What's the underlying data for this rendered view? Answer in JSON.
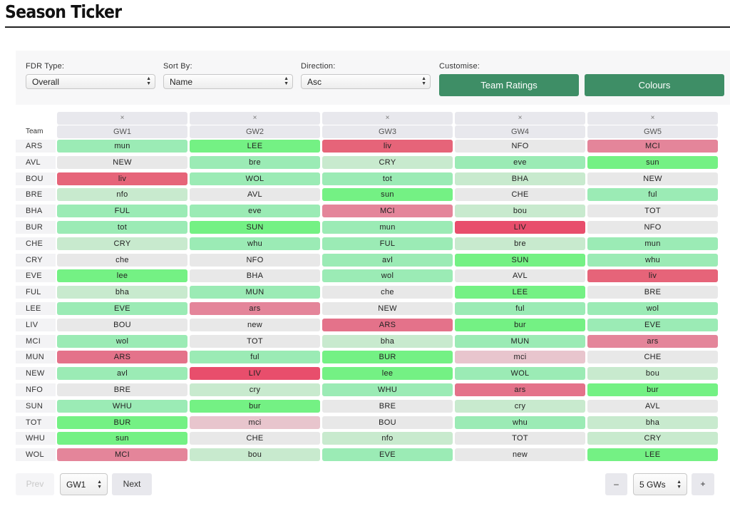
{
  "title": "Season Ticker",
  "controls": {
    "fdr_type": {
      "label": "FDR Type:",
      "value": "Overall"
    },
    "sort_by": {
      "label": "Sort By:",
      "value": "Name"
    },
    "direction": {
      "label": "Direction:",
      "value": "Asc"
    },
    "customise": {
      "label": "Customise:",
      "team_ratings": "Team Ratings",
      "colours": "Colours"
    }
  },
  "table": {
    "team_header": "Team",
    "remove_symbol": "×",
    "gameweeks": [
      "GW1",
      "GW2",
      "GW3",
      "GW4",
      "GW5"
    ],
    "rows": [
      {
        "team": "ARS",
        "fixtures": [
          "mun",
          "LEE",
          "liv",
          "NFO",
          "MCI"
        ],
        "fdr": [
          2,
          1,
          5,
          3,
          4
        ]
      },
      {
        "team": "AVL",
        "fixtures": [
          "NEW",
          "bre",
          "CRY",
          "eve",
          "sun"
        ],
        "fdr": [
          3,
          2,
          2.5,
          2,
          1
        ]
      },
      {
        "team": "BOU",
        "fixtures": [
          "liv",
          "WOL",
          "tot",
          "BHA",
          "NEW"
        ],
        "fdr": [
          5,
          2,
          2,
          2.5,
          3
        ]
      },
      {
        "team": "BRE",
        "fixtures": [
          "nfo",
          "AVL",
          "sun",
          "CHE",
          "ful"
        ],
        "fdr": [
          2.5,
          3,
          1,
          3,
          2
        ]
      },
      {
        "team": "BHA",
        "fixtures": [
          "FUL",
          "eve",
          "MCI",
          "bou",
          "TOT"
        ],
        "fdr": [
          2,
          2,
          4,
          2.5,
          3
        ]
      },
      {
        "team": "BUR",
        "fixtures": [
          "tot",
          "SUN",
          "mun",
          "LIV",
          "NFO"
        ],
        "fdr": [
          2,
          1,
          2,
          5.5,
          3
        ]
      },
      {
        "team": "CHE",
        "fixtures": [
          "CRY",
          "whu",
          "FUL",
          "bre",
          "mun"
        ],
        "fdr": [
          2.5,
          2,
          2,
          2.5,
          2
        ]
      },
      {
        "team": "CRY",
        "fixtures": [
          "che",
          "NFO",
          "avl",
          "SUN",
          "whu"
        ],
        "fdr": [
          3,
          3,
          2,
          1,
          2
        ]
      },
      {
        "team": "EVE",
        "fixtures": [
          "lee",
          "BHA",
          "wol",
          "AVL",
          "liv"
        ],
        "fdr": [
          1,
          3,
          2,
          3,
          5
        ]
      },
      {
        "team": "FUL",
        "fixtures": [
          "bha",
          "MUN",
          "che",
          "LEE",
          "BRE"
        ],
        "fdr": [
          2.5,
          2,
          3,
          1,
          3
        ]
      },
      {
        "team": "LEE",
        "fixtures": [
          "EVE",
          "ars",
          "NEW",
          "ful",
          "wol"
        ],
        "fdr": [
          2,
          4,
          3,
          2,
          2
        ]
      },
      {
        "team": "LIV",
        "fixtures": [
          "BOU",
          "new",
          "ARS",
          "bur",
          "EVE"
        ],
        "fdr": [
          3,
          3,
          4.5,
          1,
          2
        ]
      },
      {
        "team": "MCI",
        "fixtures": [
          "wol",
          "TOT",
          "bha",
          "MUN",
          "ars"
        ],
        "fdr": [
          2,
          3,
          2.5,
          2,
          4
        ]
      },
      {
        "team": "MUN",
        "fixtures": [
          "ARS",
          "ful",
          "BUR",
          "mci",
          "CHE"
        ],
        "fdr": [
          4.5,
          2,
          1,
          3.5,
          3
        ]
      },
      {
        "team": "NEW",
        "fixtures": [
          "avl",
          "LIV",
          "lee",
          "WOL",
          "bou"
        ],
        "fdr": [
          2,
          5.5,
          1,
          2,
          2.5
        ]
      },
      {
        "team": "NFO",
        "fixtures": [
          "BRE",
          "cry",
          "WHU",
          "ars",
          "bur"
        ],
        "fdr": [
          3,
          2.5,
          2,
          4.5,
          1
        ]
      },
      {
        "team": "SUN",
        "fixtures": [
          "WHU",
          "bur",
          "BRE",
          "cry",
          "AVL"
        ],
        "fdr": [
          2,
          1,
          3,
          2.5,
          3
        ]
      },
      {
        "team": "TOT",
        "fixtures": [
          "BUR",
          "mci",
          "BOU",
          "whu",
          "bha"
        ],
        "fdr": [
          1,
          3.5,
          3,
          2,
          2.5
        ]
      },
      {
        "team": "WHU",
        "fixtures": [
          "sun",
          "CHE",
          "nfo",
          "TOT",
          "CRY"
        ],
        "fdr": [
          1,
          3,
          2.5,
          3,
          2.5
        ]
      },
      {
        "team": "WOL",
        "fixtures": [
          "MCI",
          "bou",
          "EVE",
          "new",
          "LEE"
        ],
        "fdr": [
          4,
          2.5,
          2,
          3,
          1
        ]
      }
    ]
  },
  "fdr_colors": {
    "1": "#74f184",
    "2": "#9bebb5",
    "2.5": "#c8eace",
    "3": "#e8e8e8",
    "3.5": "#e8c5cd",
    "4": "#e4859a",
    "4.5": "#e4728a",
    "5": "#e66479",
    "5.5": "#e84e6c"
  },
  "pager": {
    "prev": "Prev",
    "gw_select": "GW1",
    "next": "Next",
    "minus": "–",
    "gws_select": "5 GWs",
    "plus": "+"
  }
}
